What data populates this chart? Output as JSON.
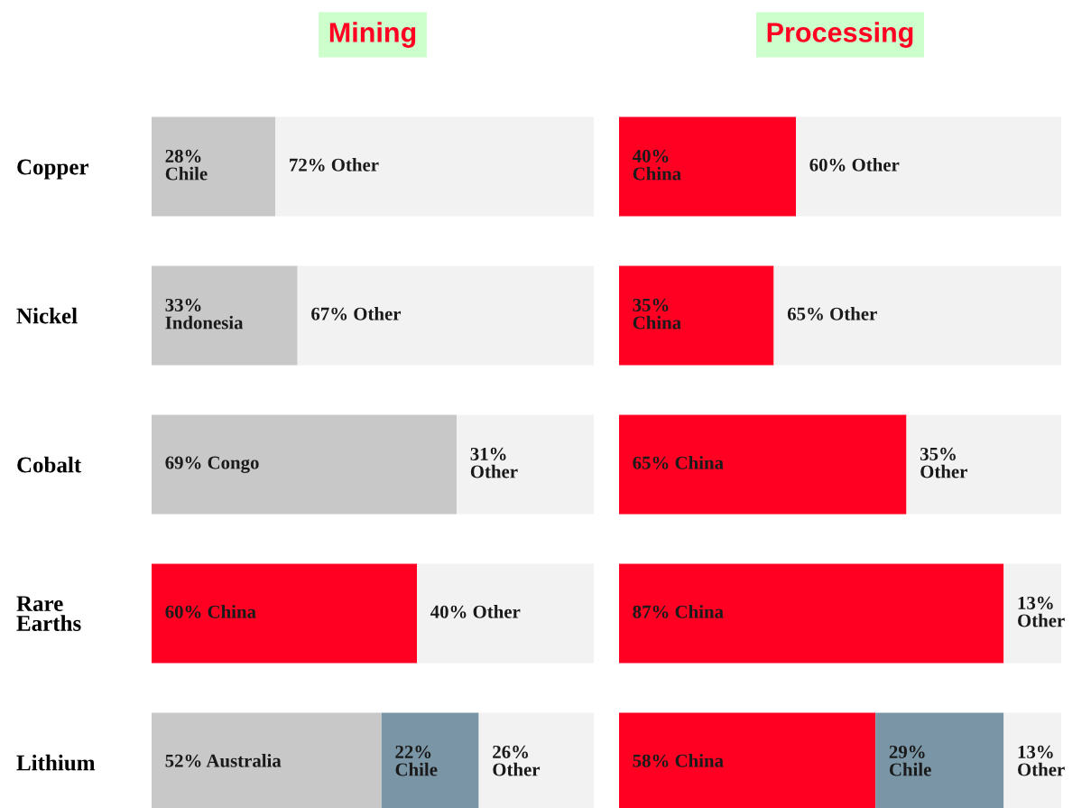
{
  "chart_data": [
    {
      "type": "bar",
      "title": "Mining",
      "orientation": "horizontal",
      "stacked": true,
      "categories": [
        "Copper",
        "Nickel",
        "Cobalt",
        "Rare Earths",
        "Lithium"
      ],
      "xlim": [
        0,
        100
      ],
      "tick_labels": "y",
      "grid": false,
      "legend": false,
      "series": [
        {
          "values": [
            28,
            33,
            69,
            60,
            52
          ],
          "colors": [
            "#c8c8c8",
            "#c8c8c8",
            "#c8c8c8",
            "#ff0022",
            "#c8c8c8"
          ],
          "value_labels": [
            "28% Chile",
            "33% Indonesia",
            "69% Congo",
            "60% China",
            "52% Australia"
          ]
        },
        {
          "values": [
            null,
            null,
            null,
            null,
            22
          ],
          "colors": [
            null,
            null,
            null,
            null,
            "#7a96a6"
          ],
          "value_labels": [
            null,
            null,
            null,
            null,
            "22% Chile"
          ]
        },
        {
          "values": [
            72,
            67,
            31,
            40,
            26
          ],
          "color": "#f2f2f2",
          "value_labels": [
            "72% Other",
            "67% Other",
            "31% Other",
            "40% Other",
            "26% Other"
          ]
        }
      ]
    },
    {
      "type": "bar",
      "title": "Processing",
      "orientation": "horizontal",
      "stacked": true,
      "categories": [
        null,
        null,
        null,
        null,
        null
      ],
      "xlim": [
        0,
        100
      ],
      "grid": false,
      "legend": false,
      "series": [
        {
          "values": [
            40,
            35,
            65,
            87,
            58
          ],
          "color": "#ff0022",
          "value_labels": [
            "40% China",
            "35% China",
            "65% China",
            "87% China",
            "58% China"
          ]
        },
        {
          "values": [
            null,
            null,
            null,
            null,
            29
          ],
          "colors": [
            null,
            null,
            null,
            null,
            "#7a96a6"
          ],
          "value_labels": [
            null,
            null,
            null,
            null,
            "29% Chile"
          ]
        },
        {
          "values": [
            60,
            65,
            35,
            13,
            13
          ],
          "color": "#f2f2f2",
          "value_labels": [
            "60% Other",
            "65% Other",
            "35% Other",
            "13% Other",
            "13% Other"
          ]
        }
      ]
    }
  ]
}
